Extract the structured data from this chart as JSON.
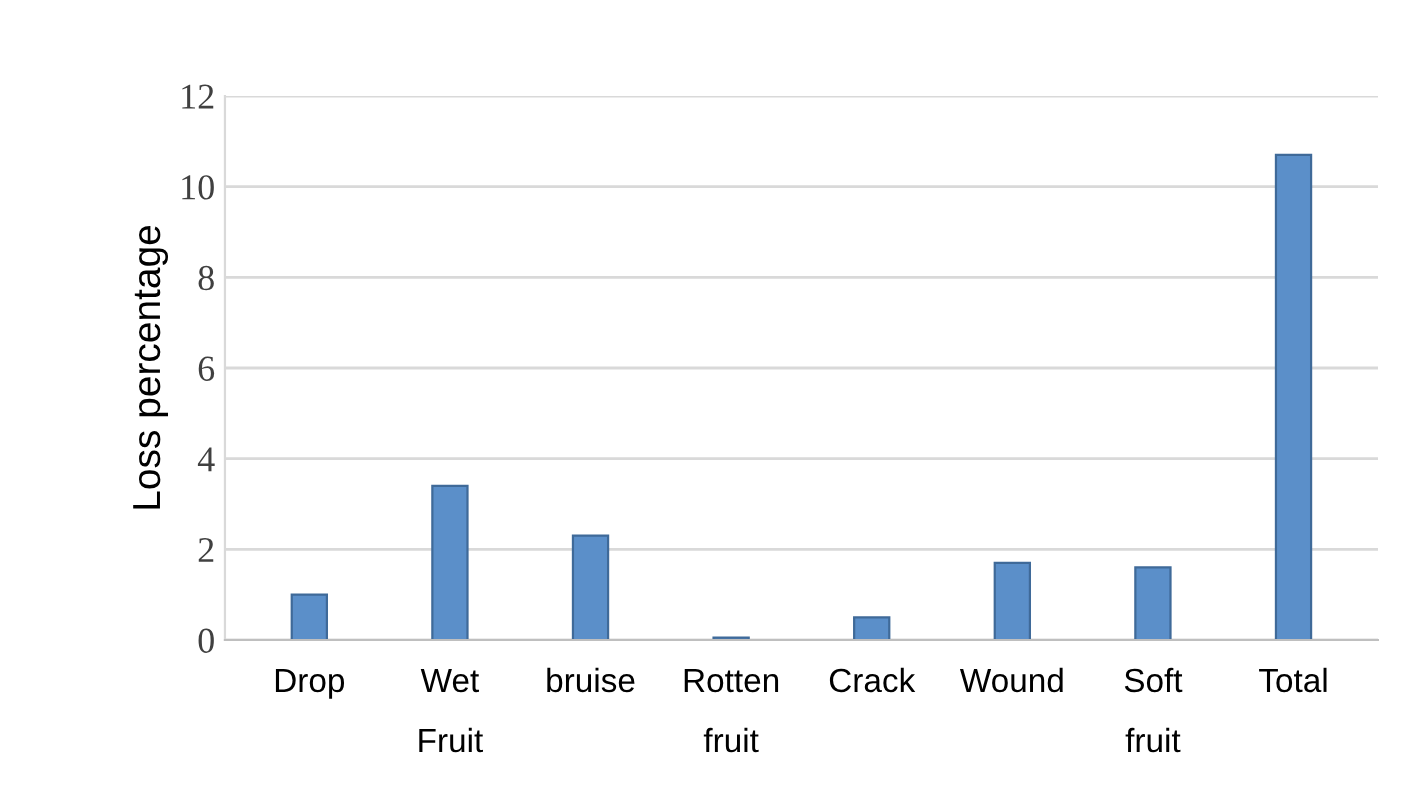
{
  "chart_data": {
    "type": "bar",
    "ylabel": "Loss percentage",
    "categories": [
      "Drop",
      "Wet\nFruit",
      "bruise",
      "Rotten\nfruit",
      "Crack",
      "Wound",
      "Soft\nfruit",
      "Total"
    ],
    "values": [
      1.0,
      3.4,
      2.3,
      0.05,
      0.5,
      1.7,
      1.6,
      10.7
    ],
    "color": "#5b8fc9",
    "ylim": [
      0,
      12
    ],
    "yticks": [
      0,
      2,
      4,
      6,
      8,
      10,
      12
    ],
    "grid": "y"
  }
}
